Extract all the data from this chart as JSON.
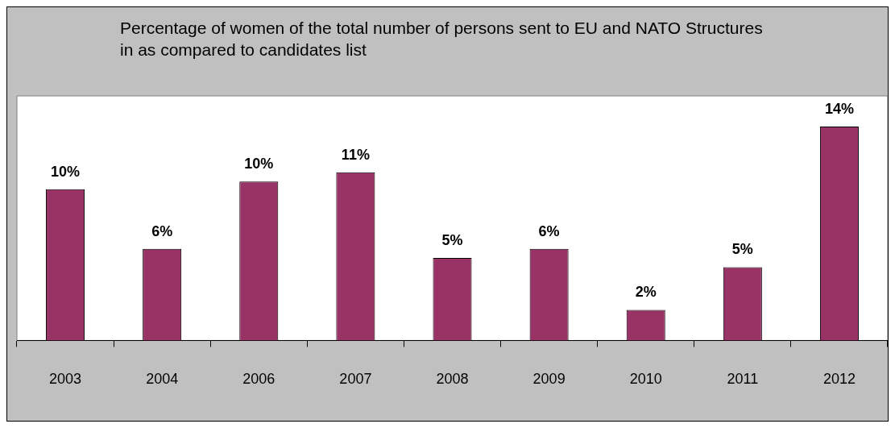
{
  "chart_data": {
    "type": "bar",
    "title": "Percentage of women of the total number of persons sent to EU and NATO Structures in as compared to candidates list",
    "categories": [
      "2003",
      "2004",
      "2006",
      "2007",
      "2008",
      "2009",
      "2010",
      "2011",
      "2012"
    ],
    "values": [
      9.9,
      6.0,
      10.4,
      11.0,
      5.4,
      6.0,
      2.0,
      4.8,
      14.0
    ],
    "value_labels": [
      "10%",
      "6%",
      "10%",
      "11%",
      "5%",
      "6%",
      "2%",
      "5%",
      "14%"
    ],
    "color": "#993366",
    "grid": false,
    "legend": false
  }
}
